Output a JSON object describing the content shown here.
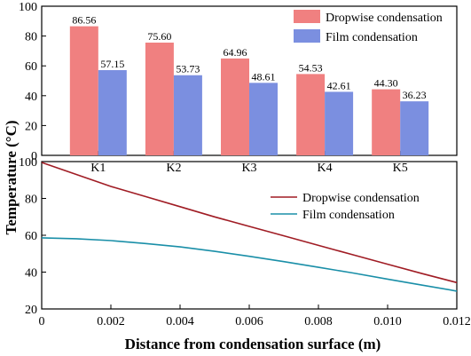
{
  "chart_data": [
    {
      "type": "bar",
      "title": "",
      "xlabel": "",
      "ylabel": "Temperature (°C)",
      "ylim": [
        0,
        100
      ],
      "yticks": [
        "0",
        "20",
        "40",
        "60",
        "80",
        "100"
      ],
      "categories": [
        "K1",
        "K2",
        "K3",
        "K4",
        "K5"
      ],
      "grid": false,
      "legend_position": "top-right",
      "series": [
        {
          "name": "Dropwise condensation",
          "color": "#f08080",
          "values": [
            86.56,
            75.6,
            64.96,
            54.53,
            44.3
          ],
          "labels": [
            "86.56",
            "75.60",
            "64.96",
            "54.53",
            "44.30"
          ]
        },
        {
          "name": "Film condensation",
          "color": "#7b8fe0",
          "values": [
            57.15,
            53.73,
            48.61,
            42.61,
            36.23
          ],
          "labels": [
            "57.15",
            "53.73",
            "48.61",
            "42.61",
            "36.23"
          ]
        }
      ]
    },
    {
      "type": "line",
      "title": "",
      "xlabel": "Distance from condensation surface (m)",
      "ylabel": "Temperature (°C)",
      "xlim": [
        0,
        0.012
      ],
      "ylim": [
        20,
        100
      ],
      "xticks": [
        {
          "v": 0,
          "t": "0"
        },
        {
          "v": 0.002,
          "t": "0.002"
        },
        {
          "v": 0.004,
          "t": "0.004"
        },
        {
          "v": 0.006,
          "t": "0.006"
        },
        {
          "v": 0.008,
          "t": "0.008"
        },
        {
          "v": 0.01,
          "t": "0.010"
        },
        {
          "v": 0.012,
          "t": "0.012"
        }
      ],
      "yticks": [
        "20",
        "40",
        "60",
        "80",
        "100"
      ],
      "grid": false,
      "legend_position": "top-right",
      "series": [
        {
          "name": "Dropwise condensation",
          "color": "#a01c24",
          "x": [
            0,
            0.001,
            0.002,
            0.003,
            0.004,
            0.005,
            0.006,
            0.007,
            0.008,
            0.009,
            0.01,
            0.011,
            0.012
          ],
          "y": [
            99.5,
            93,
            86.5,
            81,
            75.5,
            70,
            64.8,
            59.7,
            54.5,
            49.4,
            44.3,
            39.2,
            34.3
          ]
        },
        {
          "name": "Film condensation",
          "color": "#1a8fa8",
          "x": [
            0,
            0.001,
            0.002,
            0.003,
            0.004,
            0.005,
            0.006,
            0.007,
            0.008,
            0.009,
            0.01,
            0.011,
            0.012
          ],
          "y": [
            58.6,
            58.1,
            57.1,
            55.5,
            53.7,
            51.3,
            48.6,
            45.7,
            42.6,
            39.5,
            36.2,
            32.9,
            29.7
          ]
        }
      ]
    }
  ]
}
